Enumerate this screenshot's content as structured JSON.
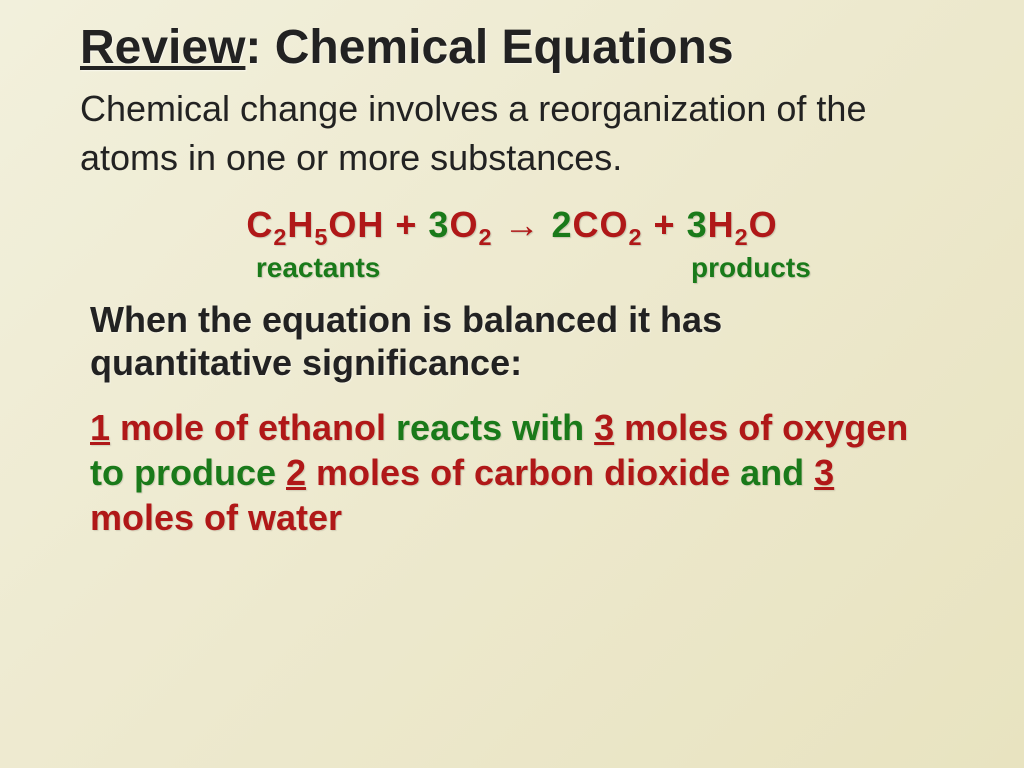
{
  "title_underlined": "Review",
  "title_rest": ": Chemical Equations",
  "intro": "Chemical change involves a reorganization of the atoms in one or more substances.",
  "colors": {
    "red": "#b01818",
    "green": "#1a7a1a",
    "black": "#222222"
  },
  "equation_parts": {
    "c": "C",
    "two_a": "2",
    "h": "H",
    "five": "5",
    "oh": "OH",
    "plus1": "   +   ",
    "coef3a": "3",
    "o": "O",
    "two_b": "2",
    "arrow": "   →   ",
    "coef2": "2",
    "co": "CO",
    "two_c": "2",
    "plus2": "   +   ",
    "coef3b": "3",
    "h2": "H",
    "two_d": "2",
    "o2": "O"
  },
  "reactants_label": "reactants",
  "products_label": "products",
  "balanced": "When the equation is balanced it has quantitative significance:",
  "stoich": {
    "part1": "1 mole of ethanol",
    "part2": " reacts with ",
    "part3": "3 moles of oxygen",
    "part4": " to produce ",
    "part5": "2 moles of carbon dioxide",
    "part6": " and ",
    "part7": "3 moles of water",
    "u1": "1",
    "t1": " mole of ethanol",
    "u3a": "3",
    "t3a": " moles of oxygen",
    "u2": "2",
    "t2": " moles of carbon dioxide",
    "u3b": "3",
    "t3b": " moles of water"
  }
}
